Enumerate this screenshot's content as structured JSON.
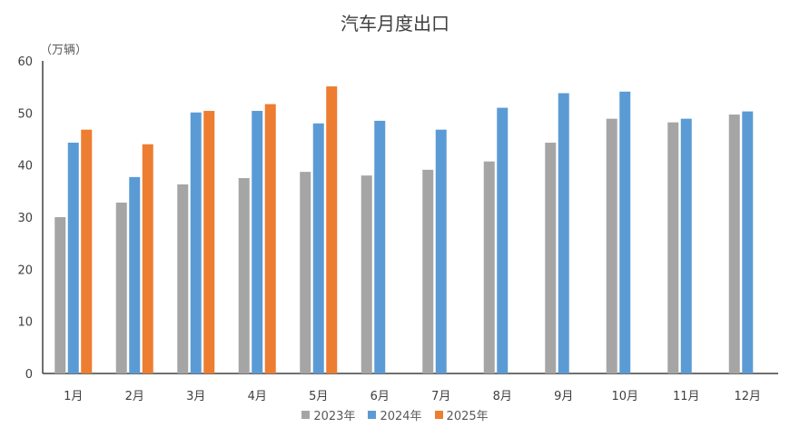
{
  "chart_data": {
    "type": "bar",
    "title": "汽车月度出口",
    "ylabel": "（万辆）",
    "xlabel": "",
    "ylim": [
      0,
      60
    ],
    "yticks": [
      "0",
      "10",
      "20",
      "30",
      "40",
      "50",
      "60"
    ],
    "grid": false,
    "legend": "bottom",
    "categories": [
      "1月",
      "2月",
      "3月",
      "4月",
      "5月",
      "6月",
      "7月",
      "8月",
      "9月",
      "10月",
      "11月",
      "12月"
    ],
    "series": [
      {
        "name": "2023年",
        "color": "#a5a5a5",
        "values": [
          30.0,
          32.8,
          36.3,
          37.5,
          38.7,
          38.0,
          39.1,
          40.7,
          44.3,
          48.9,
          48.2,
          49.7
        ]
      },
      {
        "name": "2024年",
        "color": "#5b9bd5",
        "values": [
          44.3,
          37.7,
          50.1,
          50.4,
          48.0,
          48.5,
          46.8,
          51.0,
          53.8,
          54.1,
          48.9,
          50.3
        ]
      },
      {
        "name": "2025年",
        "color": "#ed7d31",
        "values": [
          46.8,
          44.0,
          50.4,
          51.7,
          55.1,
          null,
          null,
          null,
          null,
          null,
          null,
          null
        ]
      }
    ]
  }
}
